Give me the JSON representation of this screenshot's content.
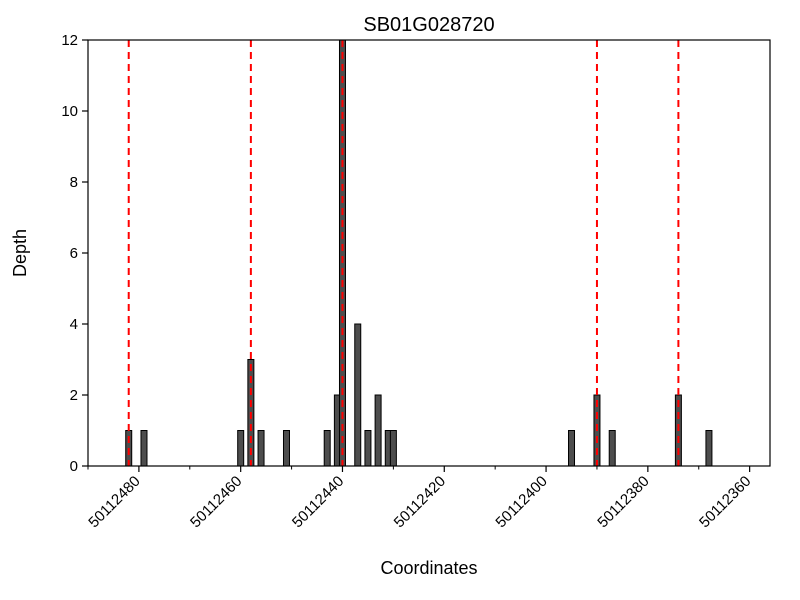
{
  "chart_data": {
    "type": "bar",
    "title": "SB01G028720",
    "xlabel": "Coordinates",
    "ylabel": "Depth",
    "ylim": [
      0,
      12
    ],
    "yticks": [
      0,
      2,
      4,
      6,
      8,
      10,
      12
    ],
    "ytick_labels": [
      "0",
      "2",
      "4",
      "6",
      "8",
      "10",
      "12"
    ],
    "x_axis": {
      "left_value": 50112490,
      "right_value": 50112356,
      "reversed": true,
      "minor_tick_step": 10
    },
    "xtick_values": [
      50112480,
      50112460,
      50112440,
      50112420,
      50112400,
      50112380,
      50112360
    ],
    "xtick_labels": [
      "50112480",
      "50112460",
      "50112440",
      "50112420",
      "50112400",
      "50112380",
      "50112360"
    ],
    "bars": [
      {
        "coordinate": 50112482,
        "depth": 1
      },
      {
        "coordinate": 50112479,
        "depth": 1
      },
      {
        "coordinate": 50112460,
        "depth": 1
      },
      {
        "coordinate": 50112458,
        "depth": 3
      },
      {
        "coordinate": 50112456,
        "depth": 1
      },
      {
        "coordinate": 50112451,
        "depth": 1
      },
      {
        "coordinate": 50112443,
        "depth": 1
      },
      {
        "coordinate": 50112441,
        "depth": 2
      },
      {
        "coordinate": 50112440,
        "depth": 12
      },
      {
        "coordinate": 50112437,
        "depth": 4
      },
      {
        "coordinate": 50112435,
        "depth": 1
      },
      {
        "coordinate": 50112433,
        "depth": 2
      },
      {
        "coordinate": 50112431,
        "depth": 1
      },
      {
        "coordinate": 50112430,
        "depth": 1
      },
      {
        "coordinate": 50112395,
        "depth": 1
      },
      {
        "coordinate": 50112390,
        "depth": 2
      },
      {
        "coordinate": 50112387,
        "depth": 1
      },
      {
        "coordinate": 50112374,
        "depth": 2
      },
      {
        "coordinate": 50112368,
        "depth": 1
      }
    ],
    "snp_lines": [
      50112482,
      50112458,
      50112440,
      50112390,
      50112374
    ],
    "colors": {
      "bar_fill": "#4d4d4d",
      "bar_edge": "#000000",
      "snp_line": "#ff0000",
      "axis": "#000000",
      "background": "#ffffff"
    },
    "legend": "none",
    "grid": "off"
  }
}
